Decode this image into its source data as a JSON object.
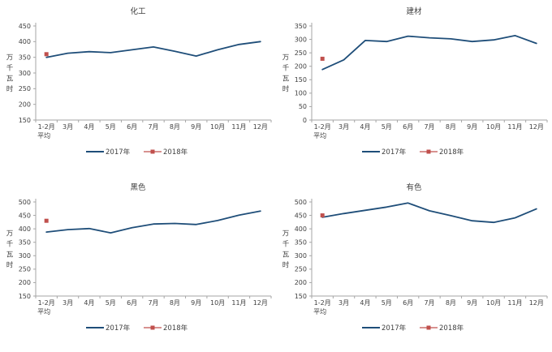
{
  "page": {
    "background": "#ffffff"
  },
  "colors": {
    "series_2017_line": "#1F4E79",
    "series_2018_marker": "#C0504D",
    "axis_line": "#A6A6A6",
    "text": "#404040"
  },
  "shared": {
    "y_axis_title": "万千瓦时",
    "x_first_label_line1": "1-2月",
    "x_first_label_line2": "平均",
    "legend_2017_label": "2017年",
    "legend_2018_label": "2018年"
  },
  "chart_data": [
    {
      "type": "line",
      "title": "化工",
      "categories": [
        "1-2月平均",
        "3月",
        "4月",
        "5月",
        "6月",
        "7月",
        "8月",
        "9月",
        "10月",
        "11月",
        "12月"
      ],
      "series": [
        {
          "name": "2017年",
          "values": [
            350,
            363,
            368,
            365,
            374,
            383,
            369,
            354,
            374,
            391,
            400
          ]
        },
        {
          "name": "2018年",
          "values": [
            360,
            null,
            null,
            null,
            null,
            null,
            null,
            null,
            null,
            null,
            null
          ]
        }
      ],
      "ylabel": "万千瓦时",
      "xlabel": "",
      "ylim": [
        150,
        450
      ],
      "ytick_step": 50,
      "grid": false,
      "legend_position": "bottom"
    },
    {
      "type": "line",
      "title": "建材",
      "categories": [
        "1-2月平均",
        "3月",
        "4月",
        "5月",
        "6月",
        "7月",
        "8月",
        "9月",
        "10月",
        "11月",
        "12月"
      ],
      "series": [
        {
          "name": "2017年",
          "values": [
            188,
            224,
            296,
            292,
            312,
            306,
            302,
            292,
            298,
            314,
            285
          ]
        },
        {
          "name": "2018年",
          "values": [
            228,
            null,
            null,
            null,
            null,
            null,
            null,
            null,
            null,
            null,
            null
          ]
        }
      ],
      "ylabel": "万千瓦时",
      "xlabel": "",
      "ylim": [
        0,
        350
      ],
      "ytick_step": 50,
      "grid": false,
      "legend_position": "bottom"
    },
    {
      "type": "line",
      "title": "黑色",
      "categories": [
        "1-2月平均",
        "3月",
        "4月",
        "5月",
        "6月",
        "7月",
        "8月",
        "9月",
        "10月",
        "11月",
        "12月"
      ],
      "series": [
        {
          "name": "2017年",
          "values": [
            388,
            397,
            401,
            385,
            404,
            418,
            420,
            416,
            431,
            451,
            466
          ]
        },
        {
          "name": "2018年",
          "values": [
            430,
            null,
            null,
            null,
            null,
            null,
            null,
            null,
            null,
            null,
            null
          ]
        }
      ],
      "ylabel": "万千瓦时",
      "xlabel": "",
      "ylim": [
        150,
        500
      ],
      "ytick_step": 50,
      "grid": false,
      "legend_position": "bottom"
    },
    {
      "type": "line",
      "title": "有色",
      "categories": [
        "1-2月平均",
        "3月",
        "4月",
        "5月",
        "6月",
        "7月",
        "8月",
        "9月",
        "10月",
        "11月",
        "12月"
      ],
      "series": [
        {
          "name": "2017年",
          "values": [
            443,
            457,
            469,
            481,
            496,
            467,
            449,
            430,
            424,
            441,
            474
          ]
        },
        {
          "name": "2018年",
          "values": [
            450,
            null,
            null,
            null,
            null,
            null,
            null,
            null,
            null,
            null,
            null
          ]
        }
      ],
      "ylabel": "万千瓦时",
      "xlabel": "",
      "ylim": [
        150,
        500
      ],
      "ytick_step": 50,
      "grid": false,
      "legend_position": "bottom"
    }
  ]
}
